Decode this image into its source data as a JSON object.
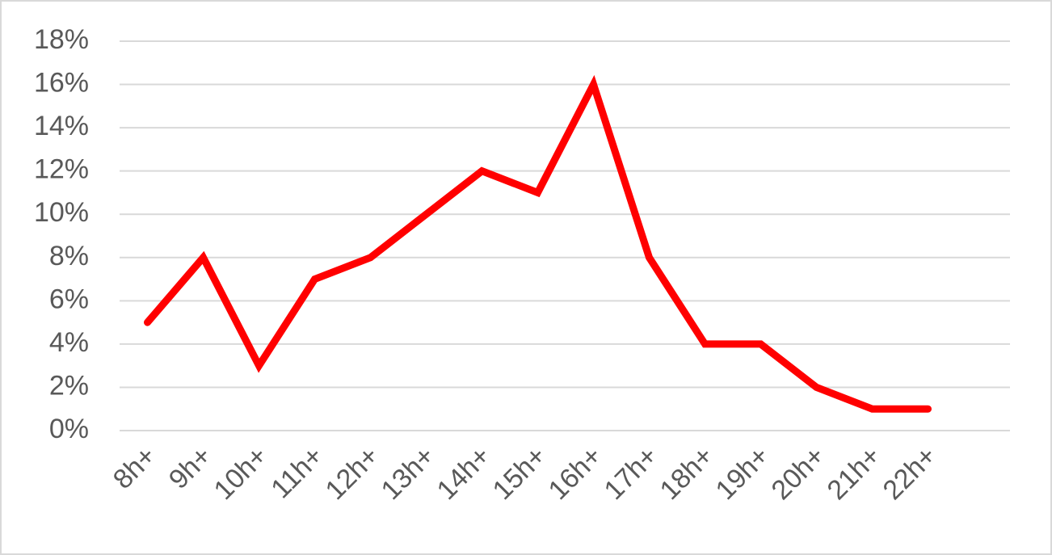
{
  "chart_data": {
    "type": "line",
    "categories": [
      "8h+",
      "9h+",
      "10h+",
      "11h+",
      "12h+",
      "13h+",
      "14h+",
      "15h+",
      "16h+",
      "17h+",
      "18h+",
      "19h+",
      "20h+",
      "21h+",
      "22h+"
    ],
    "series": [
      {
        "color": "#ff0000",
        "values": [
          5,
          8,
          3,
          7,
          8,
          10,
          12,
          11,
          16,
          8,
          4,
          4,
          2,
          1,
          1
        ]
      }
    ],
    "ylim": [
      0,
      18
    ],
    "yticks": [
      {
        "value": 0,
        "label": "0%"
      },
      {
        "value": 2,
        "label": "2%"
      },
      {
        "value": 4,
        "label": "4%"
      },
      {
        "value": 6,
        "label": "6%"
      },
      {
        "value": 8,
        "label": "8%"
      },
      {
        "value": 10,
        "label": "10%"
      },
      {
        "value": 12,
        "label": "12%"
      },
      {
        "value": 14,
        "label": "14%"
      },
      {
        "value": 16,
        "label": "16%"
      },
      {
        "value": 18,
        "label": "18%"
      }
    ],
    "grid": true
  }
}
